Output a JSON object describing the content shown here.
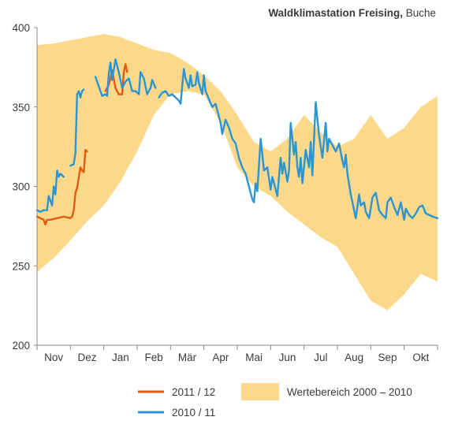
{
  "title_bold": "Waldklimastation Freising,",
  "title_rest": " Buche",
  "chart_data": {
    "type": "line",
    "ylim": [
      200,
      400
    ],
    "yticks": [
      200,
      250,
      300,
      350,
      400
    ],
    "xlim": [
      0,
      12
    ],
    "months": [
      "Nov",
      "Dez",
      "Jan",
      "Feb",
      "Mär",
      "Apr",
      "Mai",
      "Jun",
      "Jul",
      "Aug",
      "Sep",
      "Okt"
    ],
    "grid": false,
    "legend_position": "bottom",
    "colors": {
      "band": "#fcd98a",
      "series_2011": "#e05a12",
      "series_2010": "#2a95d2",
      "axis": "#888888"
    },
    "band": {
      "name": "Wertebereich 2000 – 2010",
      "x": [
        0,
        0.5,
        1,
        1.5,
        2,
        2.5,
        3,
        3.5,
        4,
        4.5,
        5,
        5.5,
        6,
        6.5,
        7,
        7.5,
        8,
        8.5,
        9,
        9.5,
        10,
        10.5,
        11,
        11.5,
        12
      ],
      "upper": [
        389,
        390,
        392,
        394,
        396,
        394,
        390,
        386,
        384,
        378,
        370,
        360,
        345,
        328,
        322,
        330,
        345,
        334,
        325,
        330,
        345,
        330,
        337,
        350,
        357
      ],
      "lower": [
        246,
        255,
        266,
        278,
        288,
        303,
        322,
        345,
        358,
        360,
        358,
        340,
        312,
        300,
        294,
        284,
        276,
        268,
        262,
        245,
        228,
        222,
        232,
        245,
        240
      ]
    },
    "series": [
      {
        "name": "2011 / 12",
        "segments": [
          {
            "x": [
              0,
              0.1,
              0.2,
              0.25,
              0.3,
              0.4,
              0.6,
              0.8,
              1.0,
              1.05,
              1.1,
              1.15,
              1.2,
              1.3,
              1.35,
              1.4,
              1.45,
              1.5
            ],
            "y": [
              281,
              280,
              279,
              276,
              279,
              279,
              280,
              281,
              280,
              281,
              285,
              296,
              299,
              312,
              310,
              309,
              323,
              322
            ]
          },
          {
            "x": [
              2.05,
              2.15,
              2.25,
              2.35,
              2.45,
              2.55,
              2.6,
              2.65,
              2.7
            ],
            "y": [
              360,
              364,
              373,
              362,
              358,
              358,
              372,
              377,
              372
            ]
          }
        ]
      },
      {
        "name": "2010 / 11",
        "segments": [
          {
            "x": [
              0,
              0.1,
              0.2,
              0.3,
              0.35,
              0.45,
              0.5,
              0.55,
              0.6,
              0.65,
              0.7,
              0.8
            ],
            "y": [
              285,
              284,
              285,
              285,
              294,
              288,
              300,
              295,
              310,
              306,
              308,
              306
            ]
          },
          {
            "x": [
              1.0,
              1.1,
              1.15,
              1.2,
              1.25,
              1.3,
              1.35,
              1.4
            ],
            "y": [
              313,
              314,
              321,
              358,
              360,
              356,
              360,
              361
            ]
          },
          {
            "x": [
              1.75,
              1.85,
              1.95,
              2.05,
              2.1,
              2.15,
              2.2,
              2.25,
              2.35,
              2.45,
              2.55,
              2.65,
              2.75,
              2.85,
              2.95,
              3.05,
              3.1,
              3.2,
              3.3,
              3.4,
              3.45,
              3.55
            ],
            "y": [
              369,
              363,
              357,
              358,
              357,
              371,
              378,
              367,
              380,
              372,
              362,
              366,
              368,
              360,
              360,
              358,
              372,
              368,
              358,
              362,
              367,
              362
            ]
          },
          {
            "x": [
              3.65,
              3.75,
              3.85,
              3.95,
              4.05,
              4.15,
              4.25,
              4.3,
              4.4,
              4.45,
              4.55,
              4.6,
              4.65,
              4.75,
              4.8,
              4.85,
              4.95,
              5.0,
              5.05,
              5.15,
              5.25,
              5.35,
              5.45,
              5.5,
              5.55,
              5.65,
              5.75,
              5.85,
              5.95,
              6.05,
              6.15,
              6.25,
              6.35,
              6.45,
              6.5,
              6.55,
              6.6,
              6.7,
              6.8,
              6.9,
              7.0,
              7.05,
              7.1,
              7.2,
              7.3,
              7.35,
              7.4,
              7.5,
              7.55,
              7.6,
              7.7,
              7.75,
              7.8,
              7.85,
              7.9,
              7.95,
              8.05,
              8.15,
              8.2,
              8.25,
              8.35,
              8.45,
              8.55,
              8.65,
              8.7,
              8.75,
              8.85,
              8.95,
              9.05,
              9.15,
              9.2,
              9.25,
              9.3,
              9.4,
              9.5,
              9.55,
              9.65,
              9.7,
              9.8,
              9.85,
              9.9,
              9.95,
              10.05,
              10.15,
              10.25,
              10.35,
              10.45,
              10.5,
              10.6,
              10.7,
              10.8,
              10.9,
              11.0,
              11.05,
              11.15,
              11.25,
              11.35,
              11.45,
              11.55,
              11.65,
              11.75,
              11.85,
              12.0
            ],
            "y": [
              356,
              359,
              360,
              357,
              358,
              356,
              354,
              352,
              374,
              368,
              362,
              370,
              363,
              364,
              372,
              365,
              358,
              370,
              360,
              355,
              350,
              352,
              344,
              340,
              333,
              342,
              337,
              330,
              327,
              318,
              312,
              308,
              300,
              292,
              290,
              302,
              297,
              330,
              310,
              312,
              298,
              306,
              302,
              294,
              318,
              308,
              315,
              303,
              310,
              340,
              320,
              328,
              312,
              306,
              318,
              302,
              323,
              312,
              328,
              307,
              353,
              332,
              318,
              340,
              322,
              330,
              326,
              322,
              327,
              316,
              312,
              320,
              308,
              295,
              285,
              280,
              295,
              288,
              290,
              284,
              282,
              280,
              293,
              296,
              285,
              282,
              280,
              290,
              293,
              287,
              282,
              290,
              279,
              286,
              282,
              280,
              283,
              287,
              288,
              283,
              282,
              281,
              280
            ]
          }
        ]
      }
    ]
  }
}
